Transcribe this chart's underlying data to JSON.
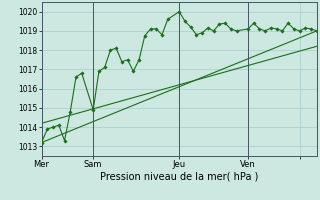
{
  "background_color": "#cce8e0",
  "grid_color": "#aacccc",
  "line_color": "#1a6e1a",
  "marker_color": "#1a6e1a",
  "xlabel": "Pression niveau de la mer( hPa )",
  "ylim": [
    1012.5,
    1020.5
  ],
  "yticks": [
    1013,
    1014,
    1015,
    1016,
    1017,
    1018,
    1019,
    1020
  ],
  "xlim": [
    0,
    96
  ],
  "day_positions": [
    0,
    18,
    48,
    72,
    90
  ],
  "day_labels": [
    "Mer",
    "Sam",
    "Jeu",
    "Ven",
    ""
  ],
  "series1": {
    "x": [
      0,
      2,
      4,
      6,
      8,
      10,
      12,
      14,
      18,
      20,
      22,
      24,
      26,
      28,
      30,
      32,
      34,
      36,
      38,
      40,
      42,
      44,
      48,
      50,
      52,
      54,
      56,
      58,
      60,
      62,
      64,
      66,
      68,
      72,
      74,
      76,
      78,
      80,
      82,
      84,
      86,
      88,
      90,
      92,
      94,
      96
    ],
    "y": [
      1013.2,
      1013.9,
      1014.0,
      1014.1,
      1013.3,
      1014.8,
      1016.6,
      1016.8,
      1014.9,
      1016.9,
      1017.1,
      1018.0,
      1018.1,
      1017.4,
      1017.5,
      1016.9,
      1017.5,
      1018.75,
      1019.1,
      1019.1,
      1018.8,
      1019.6,
      1020.0,
      1019.5,
      1019.2,
      1018.8,
      1018.9,
      1019.15,
      1019.0,
      1019.35,
      1019.4,
      1019.1,
      1019.0,
      1019.1,
      1019.4,
      1019.1,
      1019.0,
      1019.15,
      1019.1,
      1019.0,
      1019.4,
      1019.1,
      1019.0,
      1019.15,
      1019.1,
      1019.0
    ]
  },
  "series2_straight": {
    "x": [
      0,
      96
    ],
    "y": [
      1013.2,
      1019.0
    ]
  },
  "series3_straight": {
    "x": [
      0,
      96
    ],
    "y": [
      1014.2,
      1018.2
    ]
  },
  "vlines": [
    0,
    18,
    48,
    72
  ]
}
